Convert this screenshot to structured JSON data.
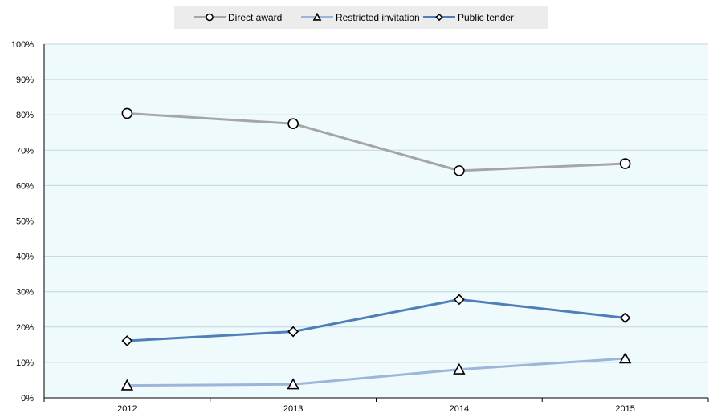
{
  "chart_data": {
    "type": "line",
    "categories": [
      "2012",
      "2013",
      "2014",
      "2015"
    ],
    "ylim": [
      0,
      100
    ],
    "yticks": [
      "0%",
      "10%",
      "20%",
      "30%",
      "40%",
      "50%",
      "60%",
      "70%",
      "80%",
      "90%",
      "100%"
    ],
    "grid": true,
    "legend_position": "top-center",
    "series": [
      {
        "name": "Direct award",
        "values": [
          80.4,
          77.5,
          64.2,
          66.2
        ],
        "color": "#a6a6a6",
        "marker": "circle"
      },
      {
        "name": "Restricted invitation",
        "values": [
          3.5,
          3.8,
          8.0,
          11.1
        ],
        "color": "#9bb6d8",
        "marker": "triangle"
      },
      {
        "name": "Public tender",
        "values": [
          16.1,
          18.7,
          27.8,
          22.6
        ],
        "color": "#4f7fb8",
        "marker": "diamond"
      }
    ],
    "colors": {
      "plot_background": "#eefafb",
      "gridline": "#c3d6e0",
      "legend_background": "#ececec"
    }
  }
}
